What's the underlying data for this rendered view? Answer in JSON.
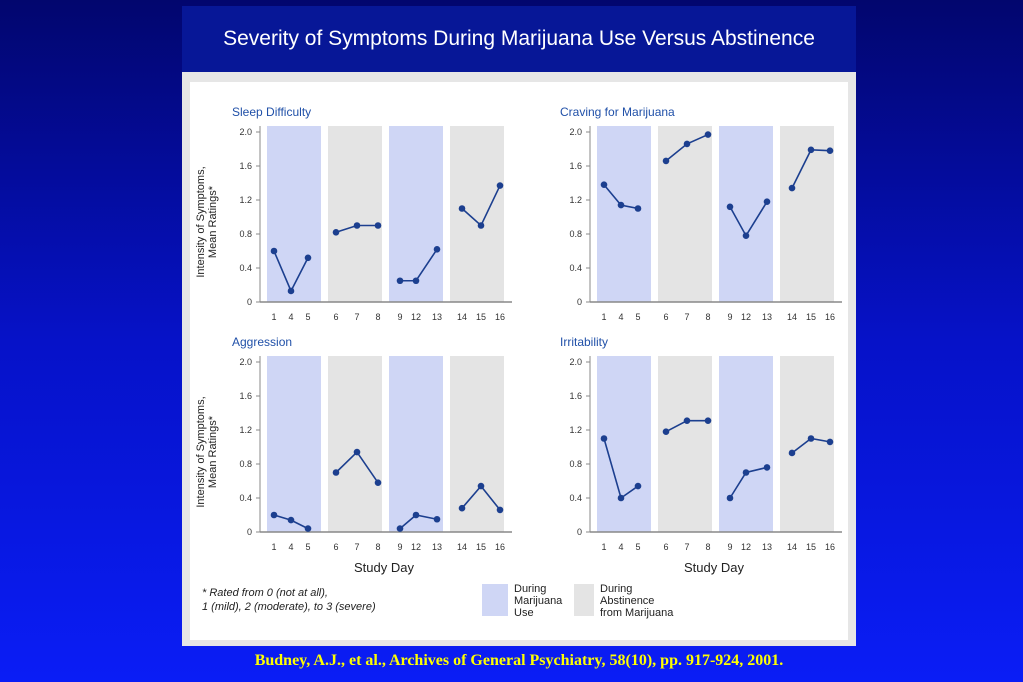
{
  "slide": {
    "title": "Severity of Symptoms During Marijuana Use Versus Abstinence",
    "citation": "Budney, A.J., et al., Archives of General Psychiatry, 58(10), pp. 917-924, 2001."
  },
  "figure": {
    "ylabel_line1": "Intensity of Symptoms,",
    "ylabel_line2": "Mean Ratings*",
    "xlabel": "Study Day",
    "footnote_line1": "* Rated from 0 (not at all),",
    "footnote_line2": "1 (mild), 2 (moderate), to 3 (severe)",
    "legend": {
      "use_lines": [
        "During",
        "Marijuana",
        "Use"
      ],
      "abstinence_lines": [
        "During",
        "Abstinence",
        "from Marijuana"
      ]
    },
    "colors": {
      "use_band": "#cfd6f5",
      "abstinence_band": "#e4e4e4",
      "series_line": "#1c3f8f",
      "panel_title": "#2050a8",
      "axis": "#888888"
    }
  },
  "chart_data": [
    {
      "type": "line",
      "title": "Sleep  Difficulty",
      "categories": [
        "1",
        "4",
        "5",
        "6",
        "7",
        "8",
        "9",
        "12",
        "13",
        "14",
        "15",
        "16"
      ],
      "values": [
        0.6,
        0.13,
        0.52,
        0.82,
        0.9,
        0.9,
        0.25,
        0.25,
        0.62,
        1.1,
        0.9,
        1.37
      ],
      "yticks": [
        "0",
        "0.4",
        "0.8",
        "1.2",
        "1.6",
        "2.0"
      ],
      "ylim": [
        0,
        2.0
      ],
      "phases": [
        "use",
        "abstinence",
        "use",
        "abstinence"
      ]
    },
    {
      "type": "line",
      "title": "Craving for Marijuana",
      "categories": [
        "1",
        "4",
        "5",
        "6",
        "7",
        "8",
        "9",
        "12",
        "13",
        "14",
        "15",
        "16"
      ],
      "values": [
        1.38,
        1.14,
        1.1,
        1.66,
        1.86,
        1.97,
        1.12,
        0.78,
        1.18,
        1.34,
        1.79,
        1.78
      ],
      "yticks": [
        "0",
        "0.4",
        "0.8",
        "1.2",
        "1.6",
        "2.0"
      ],
      "ylim": [
        0,
        2.0
      ],
      "phases": [
        "use",
        "abstinence",
        "use",
        "abstinence"
      ]
    },
    {
      "type": "line",
      "title": "Aggression",
      "categories": [
        "1",
        "4",
        "5",
        "6",
        "7",
        "8",
        "9",
        "12",
        "13",
        "14",
        "15",
        "16"
      ],
      "values": [
        0.2,
        0.14,
        0.04,
        0.7,
        0.94,
        0.58,
        0.04,
        0.2,
        0.15,
        0.28,
        0.54,
        0.26
      ],
      "yticks": [
        "0",
        "0.4",
        "0.8",
        "1.2",
        "1.6",
        "2.0"
      ],
      "ylim": [
        0,
        2.0
      ],
      "phases": [
        "use",
        "abstinence",
        "use",
        "abstinence"
      ]
    },
    {
      "type": "line",
      "title": "Irritability",
      "categories": [
        "1",
        "4",
        "5",
        "6",
        "7",
        "8",
        "9",
        "12",
        "13",
        "14",
        "15",
        "16"
      ],
      "values": [
        1.1,
        0.4,
        0.54,
        1.18,
        1.31,
        1.31,
        0.4,
        0.7,
        0.76,
        0.93,
        1.1,
        1.06
      ],
      "yticks": [
        "0",
        "0.4",
        "0.8",
        "1.2",
        "1.6",
        "2.0"
      ],
      "ylim": [
        0,
        2.0
      ],
      "phases": [
        "use",
        "abstinence",
        "use",
        "abstinence"
      ]
    }
  ]
}
